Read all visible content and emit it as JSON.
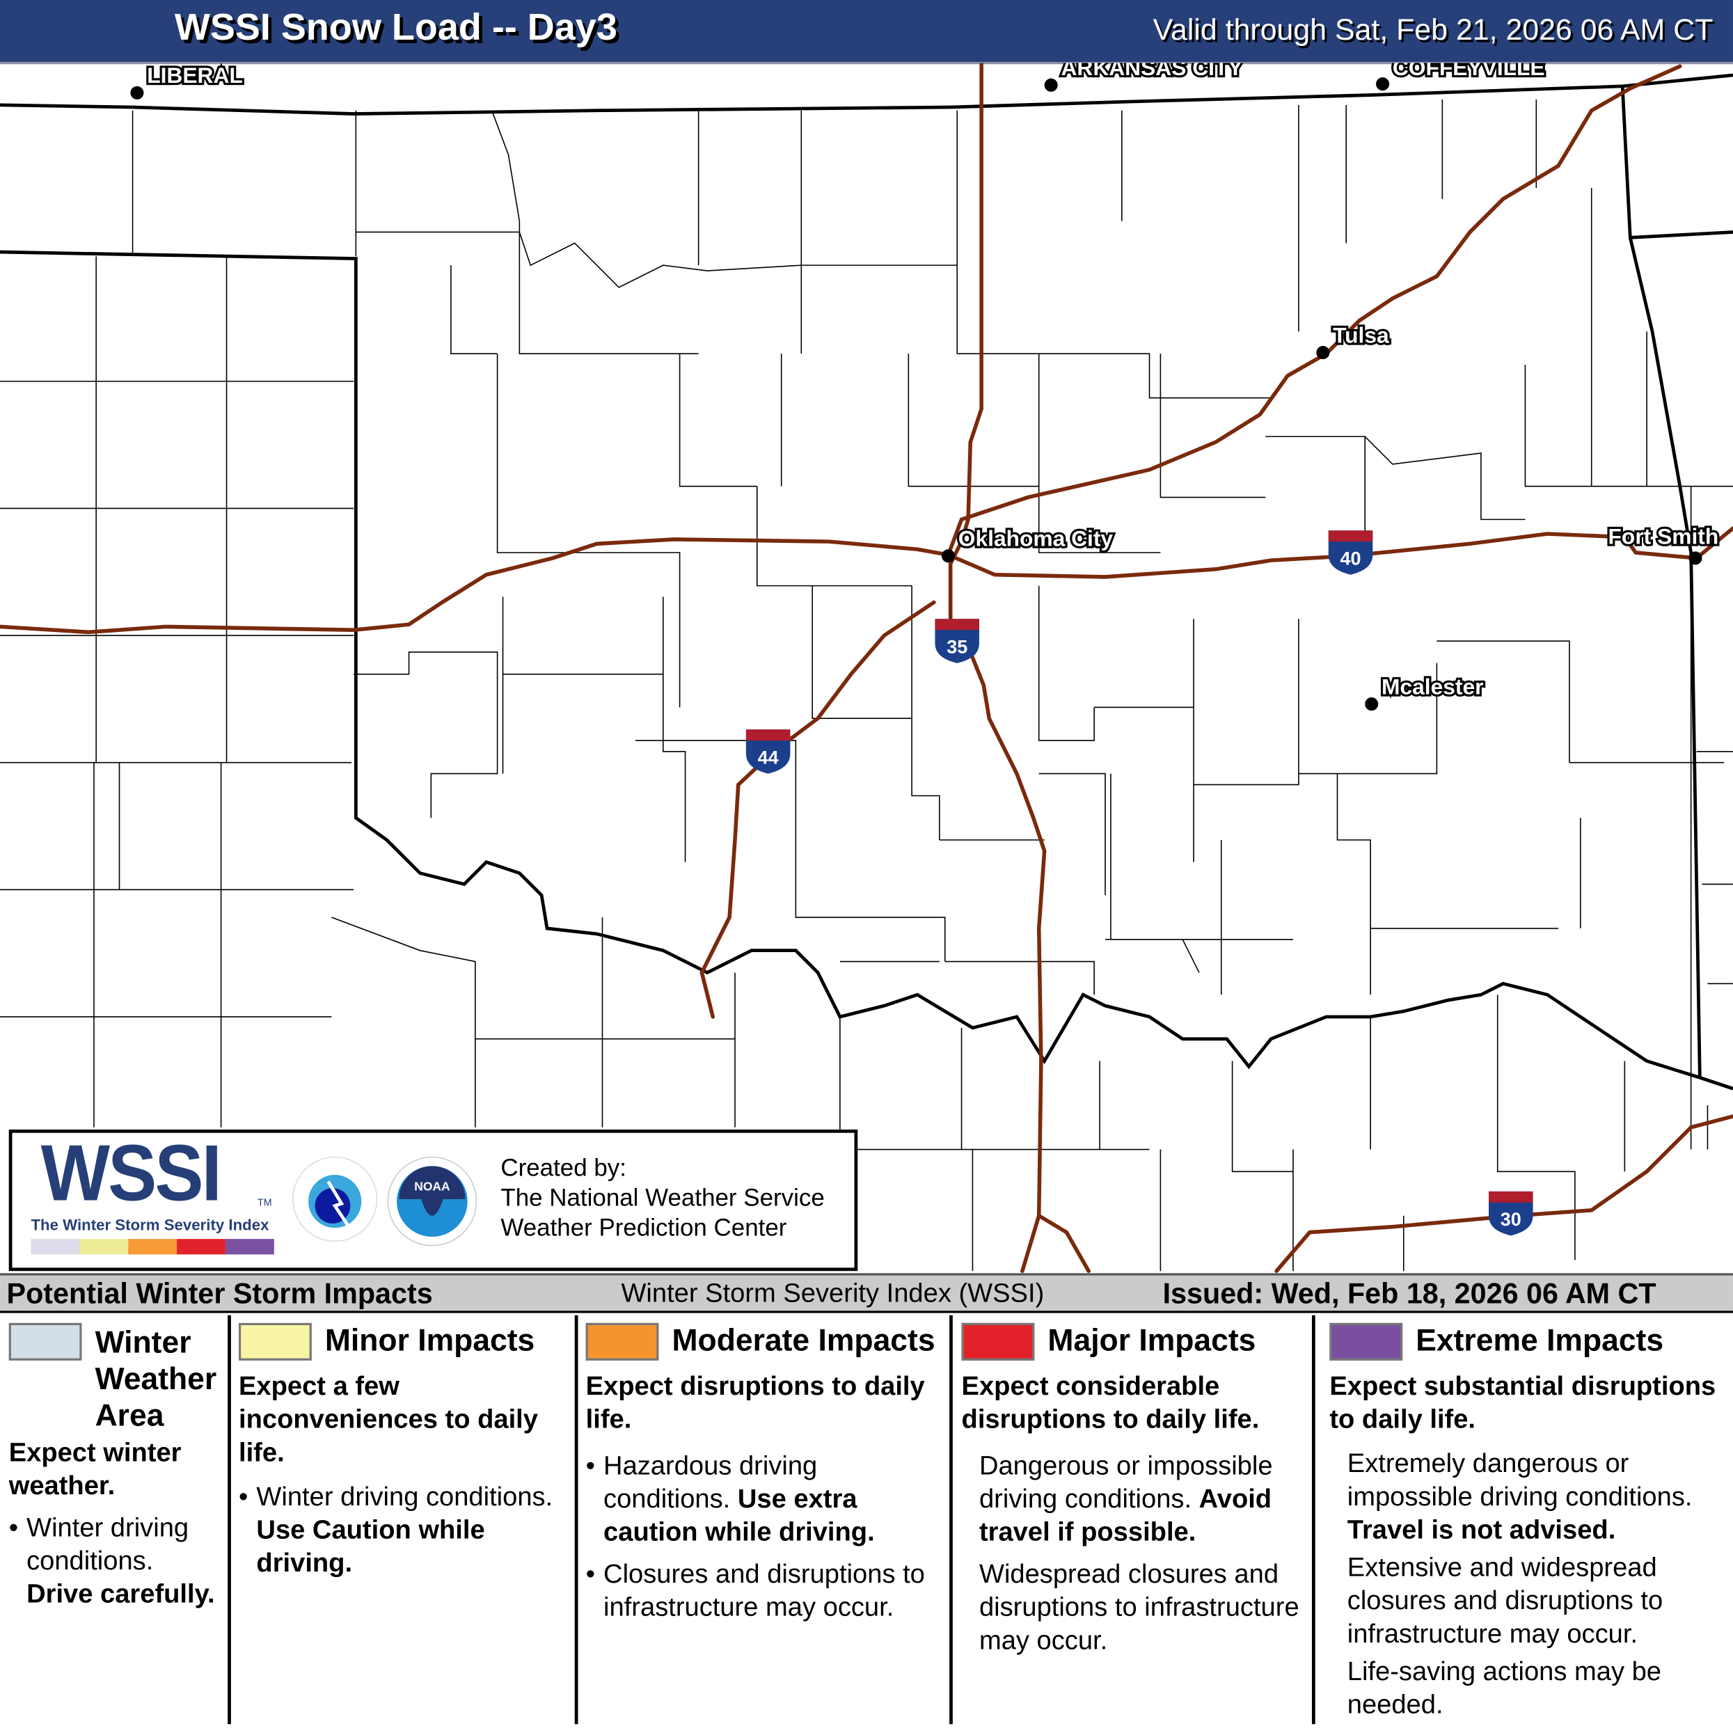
{
  "header": {
    "title": "WSSI Snow Load -- Day3",
    "valid": "Valid through Sat, Feb 21, 2026 06 AM CT"
  },
  "map": {
    "cities": [
      {
        "name": "LIBERAL"
      },
      {
        "name": "ARKANSAS CITY"
      },
      {
        "name": "COFFEYVILLE"
      },
      {
        "name": "Tulsa"
      },
      {
        "name": "Oklahoma City"
      },
      {
        "name": "Fort Smith"
      },
      {
        "name": "Mcalester"
      }
    ],
    "interstates": [
      "40",
      "35",
      "44",
      "30"
    ],
    "colors": {
      "highway": "#7a2a0c",
      "state_border": "#000000",
      "shield_blue": "#1c3f8c",
      "shield_red": "#b01d2c"
    }
  },
  "logo": {
    "wssi": "WSSI",
    "tm": "TM",
    "subtitle": "The Winter Storm Severity Index",
    "nws_logo_text": "NATIONAL WEATHER SERVICE",
    "noaa_logo_text": "NOAA",
    "created_by": "Created by:",
    "org1": "The National Weather Service",
    "org2": "Weather Prediction Center",
    "scale_colors": [
      "#dcdbe9",
      "#ecec96",
      "#f79a35",
      "#e3232c",
      "#7b51a1"
    ]
  },
  "bar": {
    "left": "Potential Winter Storm Impacts",
    "center": "Winter Storm Severity Index (WSSI)",
    "issued": "Issued: Wed, Feb 18, 2026 06 AM CT"
  },
  "legend": [
    {
      "title": "Winter Weather Area",
      "color": "#d3dfe7",
      "summary": "Expect winter weather.",
      "b1a": "Winter driving conditions.",
      "b1b": "Drive carefully."
    },
    {
      "title": "Minor Impacts",
      "color": "#f8f4a4",
      "summary": "Expect a few inconveniences to daily life.",
      "b1a": "Winter driving conditions.",
      "b1b": "Use Caution while driving."
    },
    {
      "title": "Moderate Impacts",
      "color": "#f5942f",
      "summary": "Expect disruptions to daily life.",
      "b1a": "Hazardous driving conditions.",
      "b1b": "Use extra caution while driving.",
      "b2": "Closures and disruptions to infrastructure may occur."
    },
    {
      "title": "Major Impacts",
      "color": "#e3202a",
      "summary": "Expect considerable disruptions to daily life.",
      "b1a": "Dangerous or impossible driving conditions.",
      "b1b": "Avoid travel if possible.",
      "b2": "Widespread closures and disruptions to infrastructure may occur."
    },
    {
      "title": "Extreme Impacts",
      "color": "#7a4fa0",
      "summary": "Expect substantial disruptions to daily life.",
      "b1a": "Extremely dangerous or impossible driving conditions.",
      "b1b": "Travel is not advised.",
      "b2": "Extensive and widespread closures and disruptions to infrastructure may occur.",
      "b3": "Life-saving actions may be needed."
    }
  ]
}
